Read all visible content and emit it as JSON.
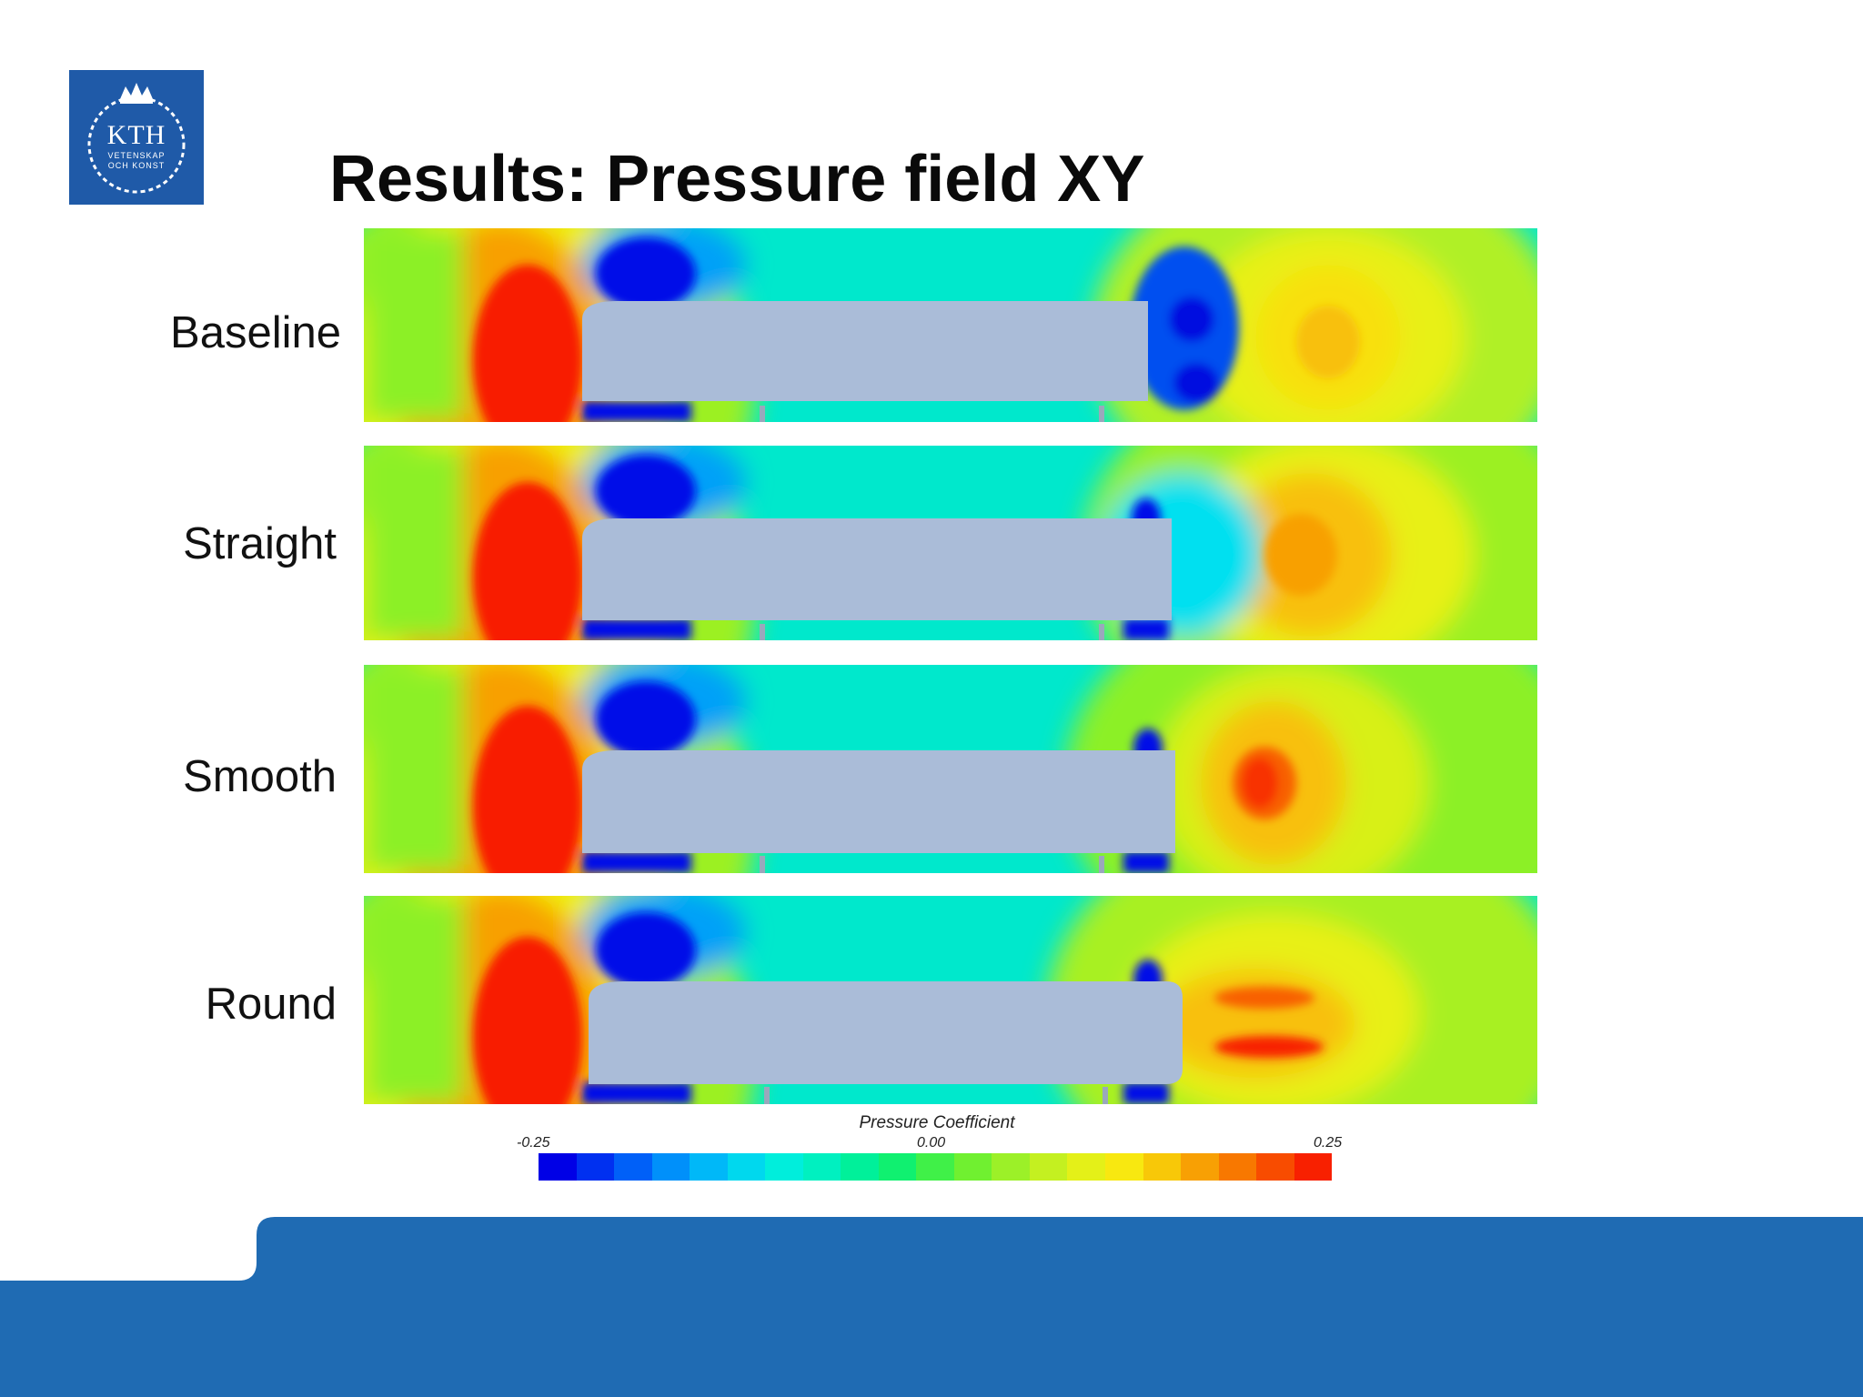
{
  "logo": {
    "main": "KTH",
    "line1": "VETENSKAP",
    "line2": "OCH KONST",
    "bg_color": "#1f5aa8"
  },
  "title": "Results: Pressure field XY",
  "panels": [
    {
      "label": "Baseline"
    },
    {
      "label": "Straight"
    },
    {
      "label": "Smooth"
    },
    {
      "label": "Round"
    }
  ],
  "colorbar": {
    "title": "Pressure Coefficient",
    "min_label": "-0.25",
    "mid_label": "0.00",
    "max_label": "0.25",
    "colors": [
      "#0000e6",
      "#0030f0",
      "#0060f8",
      "#0090fa",
      "#00b8f8",
      "#00d8ee",
      "#00eedc",
      "#00f0c0",
      "#00f09a",
      "#10f070",
      "#40f048",
      "#70f030",
      "#9cf028",
      "#c4f020",
      "#e4f018",
      "#f8e810",
      "#f8c808",
      "#f8a004",
      "#f87800",
      "#f84c00",
      "#f82000"
    ]
  },
  "footer": {
    "color": "#1f6bb3"
  }
}
